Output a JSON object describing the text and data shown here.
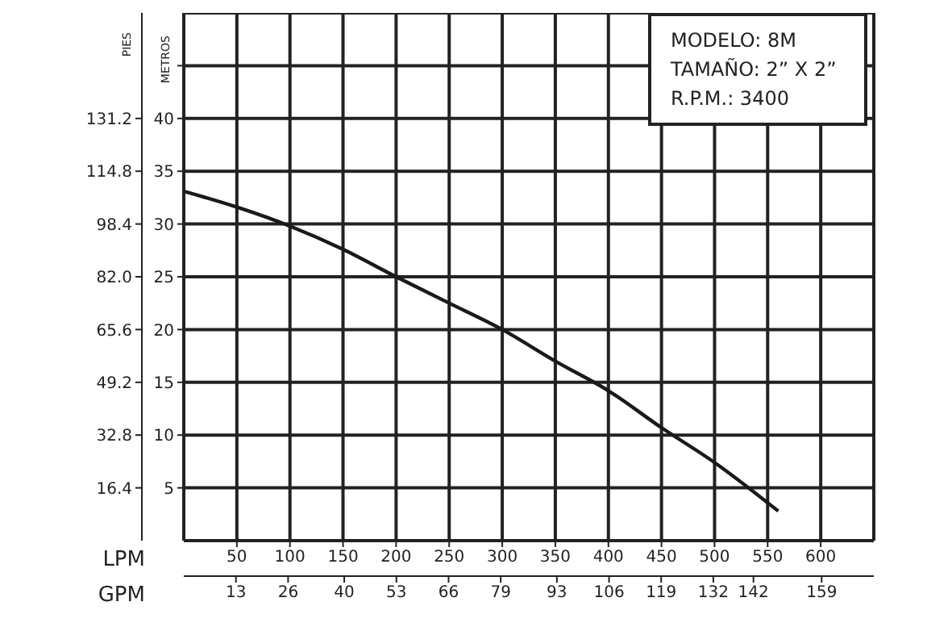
{
  "chart_data": {
    "type": "line",
    "xlabel": "LPM",
    "x2label": "GPM",
    "ylabel": "METROS",
    "y2label": "PIES",
    "x": [
      0,
      50,
      100,
      150,
      200,
      248,
      300,
      350,
      400,
      450,
      500,
      560
    ],
    "series": [
      {
        "color": "#1a1a1a",
        "values": [
          33.1,
          31.6,
          29.8,
          27.6,
          25.0,
          22.6,
          20.0,
          17.0,
          14.2,
          10.7,
          7.4,
          2.8
        ]
      }
    ],
    "xlim": [
      0,
      650
    ],
    "xticks": [
      50,
      100,
      150,
      200,
      250,
      300,
      350,
      400,
      450,
      500,
      550,
      600
    ],
    "x2lim": [
      0,
      172
    ],
    "x2ticks": [
      13,
      26,
      40,
      53,
      66,
      79,
      93,
      106,
      119,
      132,
      142,
      159
    ],
    "ylim": [
      0,
      50
    ],
    "yticks": [
      5,
      10,
      15,
      20,
      25,
      30,
      35,
      40,
      {
        "value": 45,
        "label": null
      }
    ],
    "y2lim": [
      0,
      164
    ],
    "y2ticks": [
      16.4,
      32.8,
      49.2,
      65.6,
      {
        "value": 82,
        "label": "82.0"
      },
      98.4,
      114.8,
      131.2
    ],
    "grid": true,
    "marker": "none",
    "line_style": "solid",
    "annotations": [
      "MODELO: 8M",
      "TAMAÑO: 2” X 2”",
      "R.P.M.: 3400"
    ]
  }
}
